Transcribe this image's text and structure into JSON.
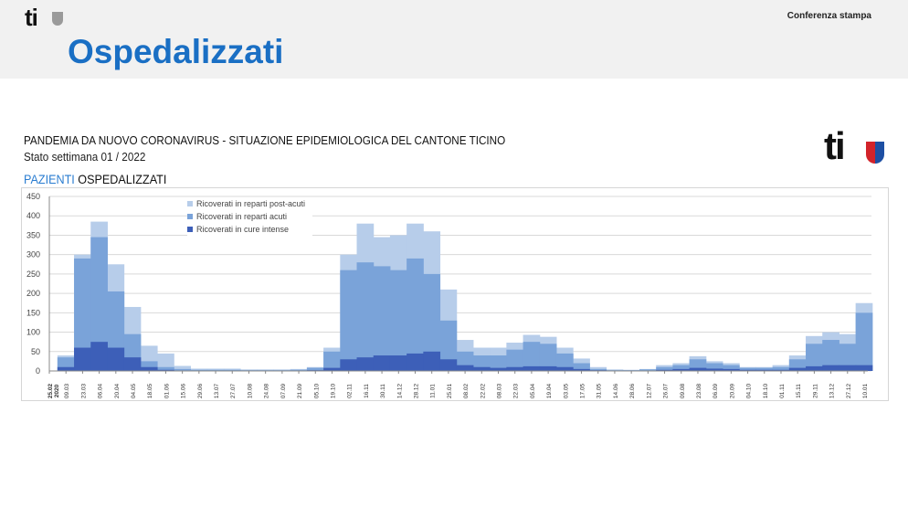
{
  "header": {
    "logo": "ti",
    "title": "Ospedalizzati",
    "right_label": "Conferenza stampa"
  },
  "slide": {
    "heading": "PANDEMIA DA NUOVO CORONAVIRUS - SITUAZIONE EPIDEMIOLOGICA DEL CANTONE TICINO",
    "subheading": "Stato settimana 01 / 2022",
    "section_blue": "PAZIENTI",
    "section_black": "OSPEDALIZZATI",
    "logo": "ti"
  },
  "colors": {
    "post_acute": "#b7cdea",
    "acute": "#7aa3d9",
    "icu": "#3d5fb8",
    "title": "#1a6fc4"
  },
  "chart_data": {
    "type": "bar",
    "stacked": true,
    "ylim": [
      0,
      450
    ],
    "yticks": [
      0,
      50,
      100,
      150,
      200,
      250,
      300,
      350,
      400,
      450
    ],
    "grid": true,
    "legend_placement": "top-left-center",
    "x_first_label": [
      "25.02",
      "2020"
    ],
    "categories": [
      "25.02",
      "09.03",
      "23.03",
      "06.04",
      "20.04",
      "04.05",
      "18.05",
      "01.06",
      "15.06",
      "29.06",
      "13.07",
      "27.07",
      "10.08",
      "24.08",
      "07.09",
      "21.09",
      "05.10",
      "19.10",
      "02.11",
      "16.11",
      "30.11",
      "14.12",
      "28.12",
      "11.01",
      "25.01",
      "08.02",
      "22.02",
      "08.03",
      "22.03",
      "05.04",
      "19.04",
      "03.05",
      "17.05",
      "31.05",
      "14.06",
      "28.06",
      "12.07",
      "26.07",
      "09.08",
      "23.08",
      "06.09",
      "20.09",
      "04.10",
      "18.10",
      "01.11",
      "15.11",
      "29.11",
      "13.12",
      "27.12",
      "10.01"
    ],
    "series": [
      {
        "name": "Ricoverati in reparti post-acuti",
        "values": [
          0,
          5,
          10,
          40,
          70,
          70,
          40,
          35,
          8,
          3,
          3,
          3,
          2,
          2,
          2,
          2,
          2,
          10,
          40,
          100,
          75,
          90,
          90,
          110,
          80,
          30,
          20,
          20,
          18,
          18,
          18,
          15,
          12,
          5,
          2,
          1,
          1,
          5,
          5,
          8,
          5,
          5,
          2,
          2,
          5,
          10,
          20,
          20,
          25,
          25
        ]
      },
      {
        "name": "Ricoverati in reparti acuti",
        "values": [
          0,
          25,
          230,
          270,
          145,
          60,
          15,
          7,
          4,
          2,
          2,
          2,
          2,
          2,
          2,
          2,
          6,
          42,
          230,
          245,
          230,
          220,
          245,
          200,
          100,
          35,
          30,
          32,
          45,
          63,
          58,
          35,
          15,
          3,
          1,
          1,
          3,
          7,
          10,
          22,
          14,
          10,
          5,
          5,
          7,
          22,
          58,
          65,
          55,
          135
        ]
      },
      {
        "name": "Ricoverati in cure intense",
        "values": [
          0,
          10,
          60,
          75,
          60,
          35,
          10,
          3,
          1,
          1,
          1,
          1,
          0,
          0,
          0,
          1,
          2,
          8,
          30,
          35,
          40,
          40,
          45,
          50,
          30,
          15,
          10,
          8,
          10,
          12,
          12,
          10,
          5,
          2,
          1,
          1,
          1,
          3,
          5,
          8,
          6,
          5,
          3,
          3,
          3,
          8,
          12,
          15,
          15,
          15
        ]
      }
    ]
  }
}
